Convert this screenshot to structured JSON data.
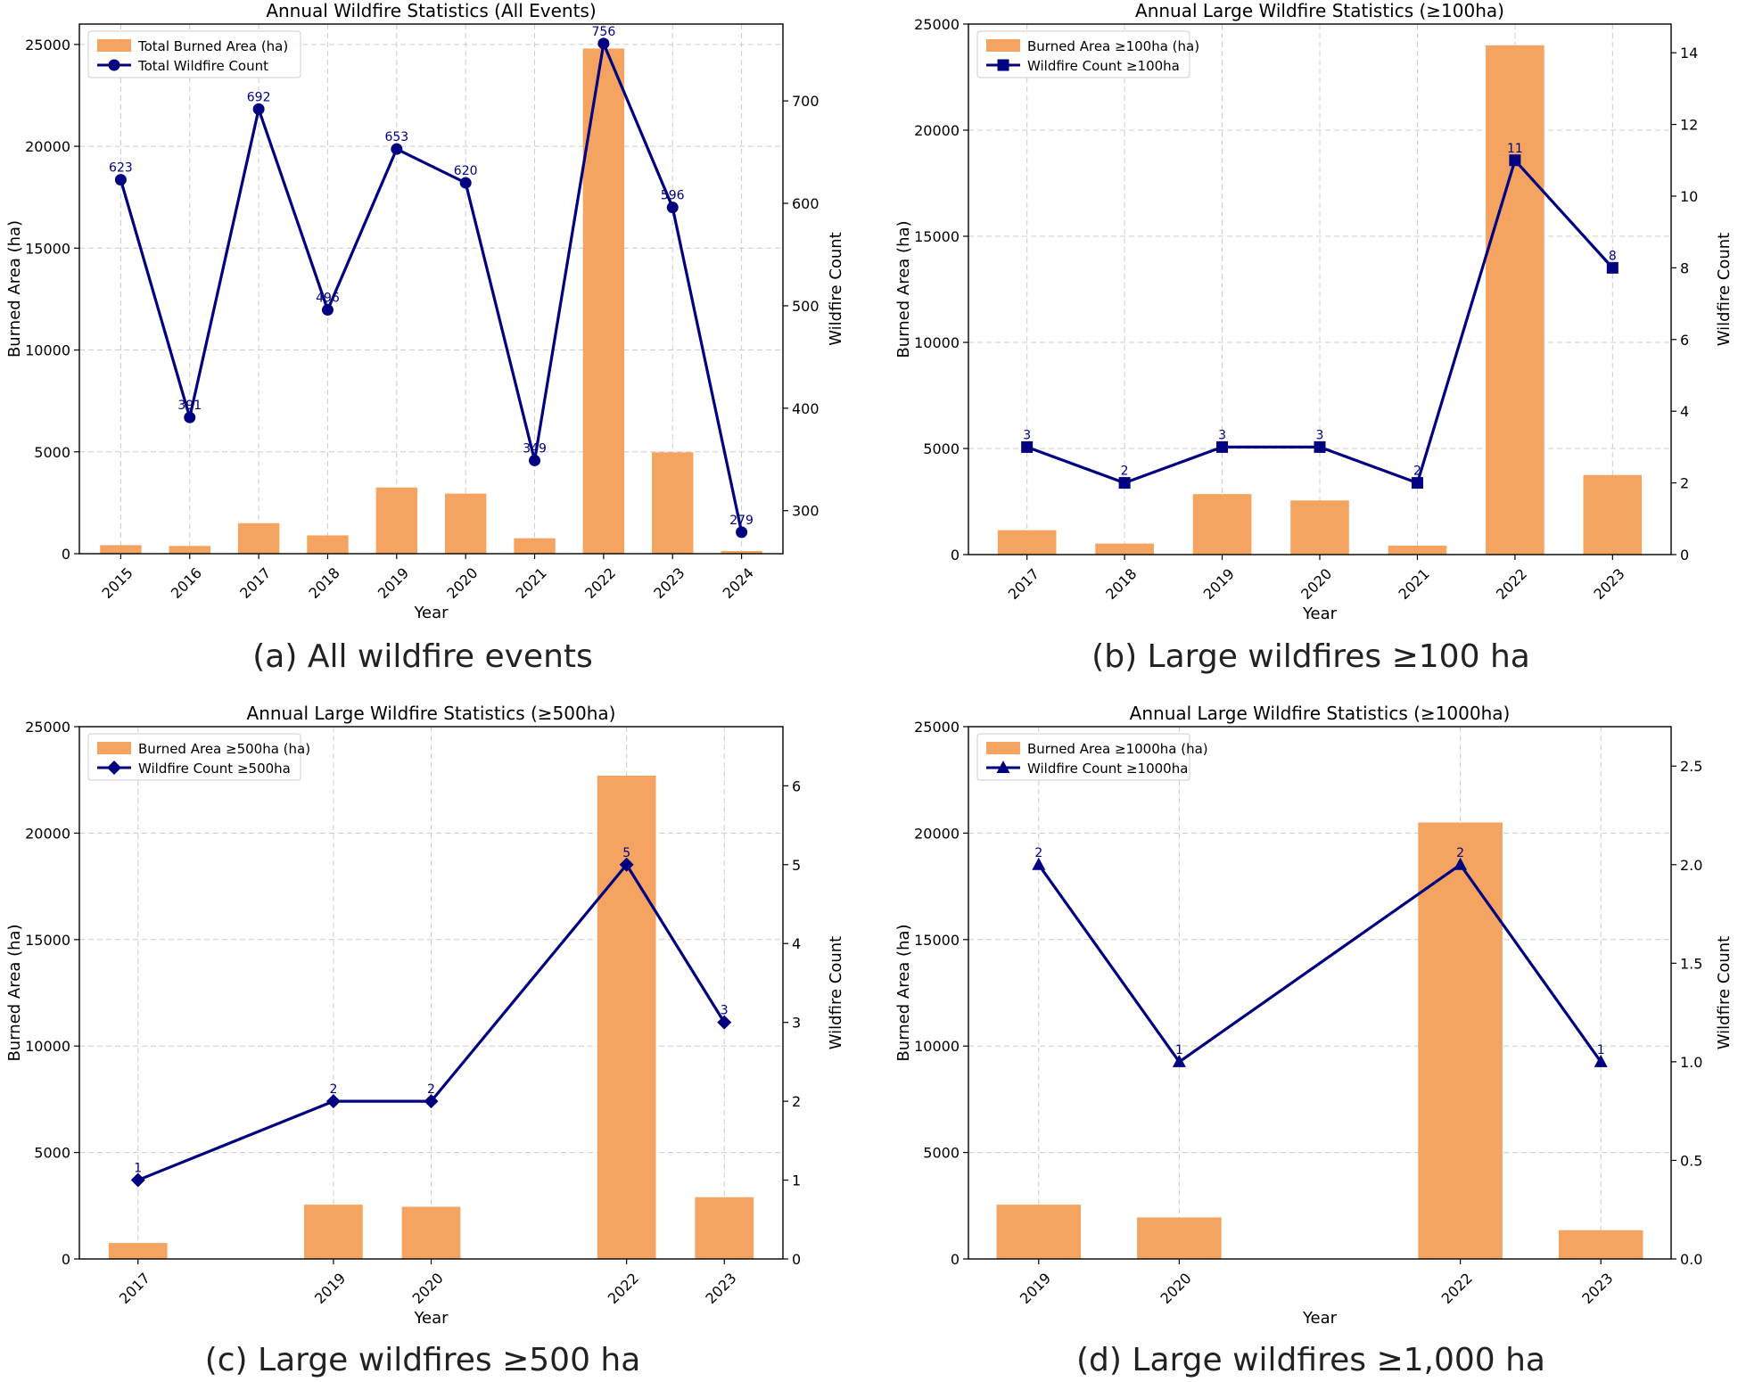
{
  "captions": [
    "(a) All wildfire events",
    "(b) Large wildfires ≥100 ha",
    "(c) Large wildfires ≥500 ha",
    "(d) Large wildfires ≥1,000 ha"
  ],
  "colors": {
    "bar": "#f4a460",
    "line": "#000080",
    "grid": "#cccccc",
    "axis": "#000000"
  },
  "chart_data": [
    {
      "type": "bar+line",
      "title": "Annual Wildfire Statistics (All Events)",
      "xlabel": "Year",
      "ylabel": "Burned Area (ha)",
      "y2label": "Wildfire Count",
      "categories": [
        "2015",
        "2016",
        "2017",
        "2018",
        "2019",
        "2020",
        "2021",
        "2022",
        "2023",
        "2024"
      ],
      "ylim": [
        0,
        26000
      ],
      "yticks": [
        0,
        5000,
        10000,
        15000,
        20000,
        25000
      ],
      "y2lim": [
        258,
        775
      ],
      "y2ticks": [
        300,
        400,
        500,
        600,
        700
      ],
      "marker": "circle",
      "legend": "top-left",
      "grid": true,
      "series": [
        {
          "name": "Total Burned Area (ha)",
          "kind": "bar",
          "values": [
            420,
            380,
            1500,
            900,
            3250,
            2950,
            760,
            24800,
            4980,
            130
          ]
        },
        {
          "name": "Total Wildfire Count",
          "kind": "line",
          "values": [
            623,
            391,
            692,
            496,
            653,
            620,
            349,
            756,
            596,
            279
          ],
          "labels": [
            "623",
            "391",
            "692",
            "496",
            "653",
            "620",
            "349",
            "756",
            "596",
            "279"
          ]
        }
      ]
    },
    {
      "type": "bar+line",
      "title": "Annual Large Wildfire Statistics (≥100ha)",
      "xlabel": "Year",
      "ylabel": "Burned Area (ha)",
      "y2label": "Wildfire Count",
      "categories": [
        "2017",
        "2018",
        "2019",
        "2020",
        "2021",
        "2022",
        "2023"
      ],
      "ylim": [
        0,
        25000
      ],
      "yticks": [
        0,
        5000,
        10000,
        15000,
        20000,
        25000
      ],
      "y2lim": [
        0,
        14.8
      ],
      "y2ticks": [
        0,
        2,
        4,
        6,
        8,
        10,
        12,
        14
      ],
      "marker": "square",
      "legend": "top-left",
      "grid": true,
      "series": [
        {
          "name": "Burned Area ≥100ha (ha)",
          "kind": "bar",
          "values": [
            1150,
            520,
            2850,
            2550,
            420,
            24000,
            3750
          ]
        },
        {
          "name": "Wildfire Count ≥100ha",
          "kind": "line",
          "values": [
            3,
            2,
            3,
            3,
            2,
            11,
            8
          ],
          "labels": [
            "3",
            "2",
            "3",
            "3",
            "2",
            "11",
            "8"
          ]
        }
      ]
    },
    {
      "type": "bar+line",
      "title": "Annual Large Wildfire Statistics (≥500ha)",
      "xlabel": "Year",
      "ylabel": "Burned Area (ha)",
      "y2label": "Wildfire Count",
      "categories": [
        "2017",
        "2019",
        "2020",
        "2022",
        "2023"
      ],
      "xpositions": [
        2017,
        2019,
        2020,
        2022,
        2023
      ],
      "xlim": [
        2016.4,
        2023.6
      ],
      "ylim": [
        0,
        25000
      ],
      "yticks": [
        0,
        5000,
        10000,
        15000,
        20000,
        25000
      ],
      "y2lim": [
        0,
        6.75
      ],
      "y2ticks": [
        0,
        1,
        2,
        3,
        4,
        5,
        6
      ],
      "marker": "diamond",
      "legend": "top-left",
      "grid": true,
      "series": [
        {
          "name": "Burned Area ≥500ha (ha)",
          "kind": "bar",
          "values": [
            750,
            2550,
            2450,
            22700,
            2900
          ]
        },
        {
          "name": "Wildfire Count ≥500ha",
          "kind": "line",
          "values": [
            1,
            2,
            2,
            5,
            3
          ],
          "labels": [
            "1",
            "2",
            "2",
            "5",
            "3"
          ]
        }
      ]
    },
    {
      "type": "bar+line",
      "title": "Annual Large Wildfire Statistics (≥1000ha)",
      "xlabel": "Year",
      "ylabel": "Burned Area (ha)",
      "y2label": "Wildfire Count",
      "categories": [
        "2019",
        "2020",
        "2022",
        "2023"
      ],
      "xpositions": [
        2019,
        2020,
        2022,
        2023
      ],
      "xlim": [
        2018.5,
        2023.5
      ],
      "ylim": [
        0,
        25000
      ],
      "yticks": [
        0,
        5000,
        10000,
        15000,
        20000,
        25000
      ],
      "y2lim": [
        0,
        2.7
      ],
      "y2ticks": [
        0.0,
        0.5,
        1.0,
        1.5,
        2.0,
        2.5
      ],
      "y2tickfmt": 1,
      "marker": "triangle",
      "legend": "top-left",
      "grid": true,
      "series": [
        {
          "name": "Burned Area ≥1000ha (ha)",
          "kind": "bar",
          "values": [
            2550,
            1950,
            20500,
            1350
          ]
        },
        {
          "name": "Wildfire Count ≥1000ha",
          "kind": "line",
          "values": [
            2,
            1,
            2,
            1
          ],
          "labels": [
            "2",
            "1",
            "2",
            "1"
          ]
        }
      ]
    }
  ]
}
